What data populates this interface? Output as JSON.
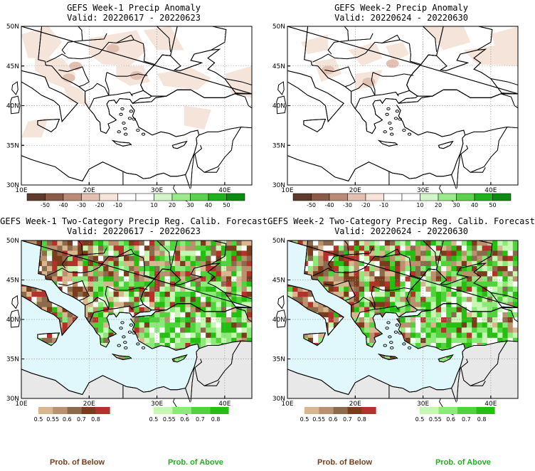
{
  "panels": [
    {
      "id": "p1",
      "kind": "anomaly",
      "title_line1": "GEFS Week-1 Precip Anomaly",
      "title_line2": "Valid: 20220617 - 20220623",
      "y_ticks": [
        "50N",
        "45N",
        "40N",
        "35N",
        "30N"
      ],
      "x_ticks": [
        "10E",
        "20E",
        "30E",
        "40E"
      ],
      "colorbar": {
        "colors": [
          "#5c3a2e",
          "#8a5a48",
          "#b98a78",
          "#e2c1b2",
          "#f6e4da",
          "#ffffff",
          "#ffffff",
          "#d3f5c9",
          "#9ce88d",
          "#5bd14e",
          "#1fb11e",
          "#0b8b12"
        ],
        "labels": [
          "-50",
          "-40",
          "-30",
          "-20",
          "-10",
          "10",
          "20",
          "30",
          "40",
          "50"
        ]
      }
    },
    {
      "id": "p2",
      "kind": "anomaly",
      "title_line1": "GEFS Week-2 Precip Anomaly",
      "title_line2": "Valid: 20220624 - 20220630",
      "y_ticks": [
        "50N",
        "45N",
        "40N",
        "35N",
        "30N"
      ],
      "x_ticks": [
        "10E",
        "20E",
        "30E",
        "40E"
      ],
      "colorbar": {
        "colors": [
          "#5c3a2e",
          "#8a5a48",
          "#b98a78",
          "#e2c1b2",
          "#f6e4da",
          "#ffffff",
          "#ffffff",
          "#d3f5c9",
          "#9ce88d",
          "#5bd14e",
          "#1fb11e",
          "#0b8b12"
        ],
        "labels": [
          "-50",
          "-40",
          "-30",
          "-20",
          "-10",
          "10",
          "20",
          "30",
          "40",
          "50"
        ]
      }
    },
    {
      "id": "p3",
      "kind": "probability",
      "title_line1": "GEFS Week-1 Two-Category Precip Reg. Calib. Forecast",
      "title_line2": "Valid: 20220617 - 20220623",
      "y_ticks": [
        "50N",
        "45N",
        "40N",
        "35N",
        "30N"
      ],
      "x_ticks": [
        "10E",
        "20E",
        "30E",
        "40E"
      ],
      "below_colors": [
        "#d8b78f",
        "#b9916d",
        "#8c6a4c",
        "#7a3d1b",
        "#b5312c"
      ],
      "below_labels": [
        "0.5",
        "0.55",
        "0.6",
        "0.7",
        "0.8"
      ],
      "above_colors": [
        "#c8f7b4",
        "#8cea78",
        "#4fd33a",
        "#25bf12"
      ],
      "above_labels": [
        "0.5",
        "0.55",
        "0.6",
        "0.7",
        "0.8"
      ],
      "prob_below": "Prob. of Below",
      "prob_above": "Prob. of Above"
    },
    {
      "id": "p4",
      "kind": "probability",
      "title_line1": "GEFS Week-2 Two-Category Precip Reg. Calib. Forecast",
      "title_line2": "Valid: 20220624 - 20220630",
      "y_ticks": [
        "50N",
        "45N",
        "40N",
        "35N",
        "30N"
      ],
      "x_ticks": [
        "10E",
        "20E",
        "30E",
        "40E"
      ],
      "below_colors": [
        "#d8b78f",
        "#b9916d",
        "#8c6a4c",
        "#7a3d1b",
        "#b5312c"
      ],
      "below_labels": [
        "0.5",
        "0.55",
        "0.6",
        "0.7",
        "0.8"
      ],
      "above_colors": [
        "#c8f7b4",
        "#8cea78",
        "#4fd33a",
        "#25bf12"
      ],
      "above_labels": [
        "0.5",
        "0.55",
        "0.6",
        "0.7",
        "0.8"
      ],
      "prob_below": "Prob. of Below",
      "prob_above": "Prob. of Above"
    }
  ],
  "palette": {
    "sea": "#e0f7fc",
    "land_out": "#e8e8e8",
    "text_below": "#7a3d1b",
    "text_above": "#1fb11e"
  }
}
